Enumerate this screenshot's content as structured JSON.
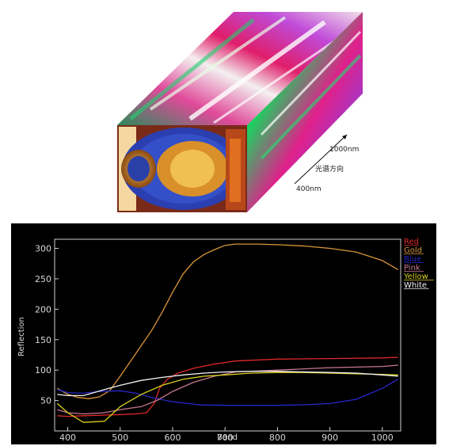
{
  "cube": {
    "wavelength_top": "1000nm",
    "wavelength_bottom": "400nm",
    "direction_label": "光谱方向"
  },
  "chart_data": {
    "type": "line",
    "xlabel": "Band",
    "ylabel": "Reflection",
    "xlim": [
      375,
      1035
    ],
    "ylim": [
      0,
      315
    ],
    "xticks": [
      400,
      500,
      600,
      700,
      800,
      900,
      1000
    ],
    "yticks": [
      50,
      100,
      150,
      200,
      250,
      300
    ],
    "grid": false,
    "legend_position": "right",
    "background": "#000000",
    "series": [
      {
        "name": "Red",
        "color": "#e0282a",
        "x": [
          380,
          400,
          430,
          470,
          500,
          530,
          550,
          565,
          575,
          590,
          610,
          640,
          680,
          720,
          800,
          900,
          1000,
          1030
        ],
        "y": [
          25,
          24,
          25,
          26,
          27,
          28,
          30,
          45,
          70,
          85,
          95,
          103,
          110,
          115,
          118,
          119,
          120,
          121
        ]
      },
      {
        "name": "Gold",
        "color": "#d9953a",
        "x": [
          380,
          400,
          420,
          440,
          460,
          480,
          500,
          520,
          540,
          560,
          580,
          600,
          620,
          640,
          660,
          680,
          700,
          720,
          760,
          800,
          850,
          900,
          950,
          1000,
          1020,
          1030
        ],
        "y": [
          70,
          60,
          55,
          53,
          56,
          66,
          90,
          115,
          140,
          165,
          195,
          228,
          258,
          278,
          290,
          298,
          305,
          307,
          307,
          306,
          304,
          300,
          294,
          280,
          270,
          265
        ]
      },
      {
        "name": "Blue",
        "color": "#2628c8",
        "x": [
          380,
          400,
          430,
          460,
          500,
          530,
          560,
          600,
          650,
          700,
          750,
          800,
          850,
          900,
          950,
          1000,
          1030
        ],
        "y": [
          68,
          63,
          62,
          65,
          66,
          62,
          55,
          48,
          43,
          42,
          42,
          42,
          43,
          45,
          52,
          70,
          85
        ]
      },
      {
        "name": "Pink",
        "color": "#c87890",
        "x": [
          380,
          400,
          430,
          470,
          500,
          540,
          570,
          600,
          640,
          680,
          720,
          800,
          900,
          1000,
          1030
        ],
        "y": [
          35,
          30,
          28,
          30,
          35,
          40,
          50,
          65,
          80,
          90,
          97,
          100,
          104,
          106,
          108
        ]
      },
      {
        "name": "Yellow",
        "color": "#d8d020",
        "x": [
          380,
          400,
          430,
          470,
          500,
          540,
          580,
          620,
          660,
          700,
          750,
          800,
          850,
          900,
          950,
          1000,
          1030
        ],
        "y": [
          45,
          30,
          14,
          16,
          40,
          60,
          75,
          85,
          90,
          92,
          95,
          96,
          96,
          95,
          94,
          93,
          92
        ]
      },
      {
        "name": "White",
        "color": "#f2f2f2",
        "x": [
          380,
          400,
          430,
          470,
          500,
          540,
          580,
          620,
          660,
          700,
          750,
          800,
          850,
          900,
          950,
          1000,
          1030
        ],
        "y": [
          60,
          58,
          58,
          68,
          75,
          83,
          88,
          92,
          95,
          97,
          98,
          98,
          97,
          96,
          95,
          92,
          90
        ]
      }
    ]
  }
}
